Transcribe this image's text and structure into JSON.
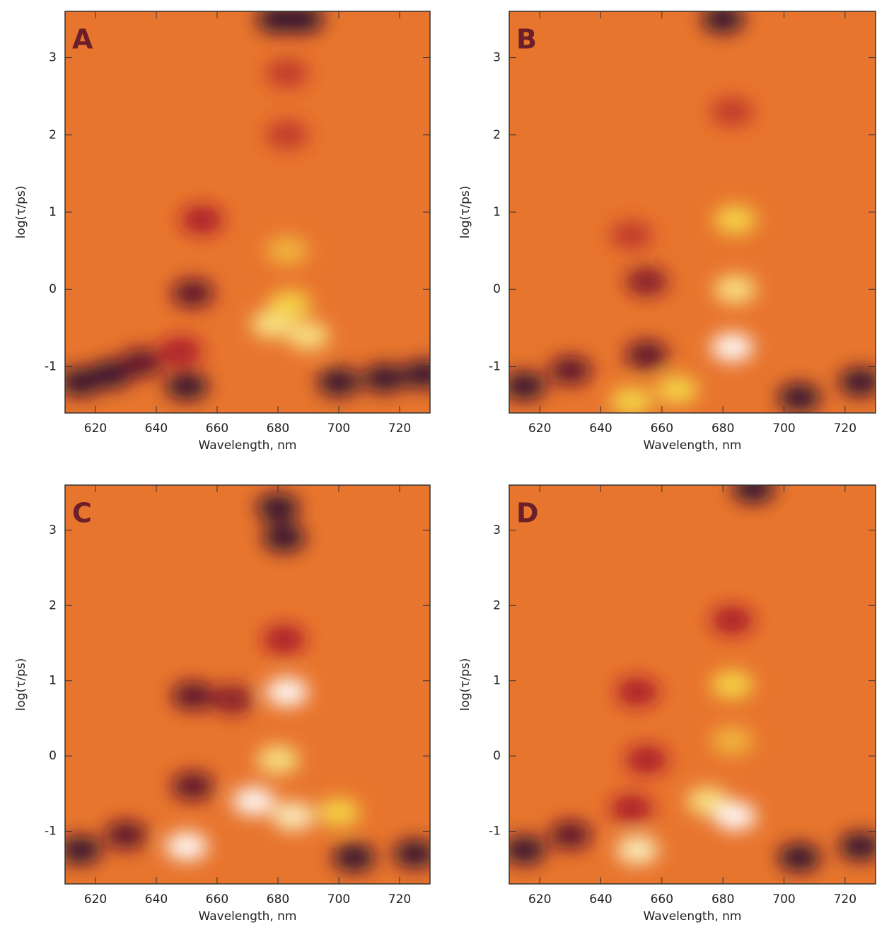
{
  "chart_data": [
    {
      "type": "heatmap",
      "panel": "A",
      "xlabel": "Wavelength, nm",
      "ylabel": "log(τ/ps)",
      "xlim": [
        610,
        730
      ],
      "ylim": [
        -1.6,
        3.6
      ],
      "xticks": [
        620,
        640,
        660,
        680,
        700,
        720
      ],
      "yticks": [
        -1,
        0,
        1,
        2,
        3
      ],
      "zlim": [
        -0.0006,
        0.0006
      ],
      "colors": [
        "#2a0a2e",
        "#a8182c",
        "#e8752e",
        "#f4d848",
        "#ffffff"
      ],
      "x": [
        615,
        625,
        635,
        648,
        700,
        715,
        728,
        680,
        688,
        683,
        683,
        655,
        652,
        678,
        690,
        683,
        684,
        650
      ],
      "y": [
        -1.2,
        -1.1,
        -0.95,
        -0.8,
        -1.2,
        -1.15,
        -1.1,
        3.5,
        3.5,
        2.8,
        2.0,
        0.9,
        -0.05,
        -0.45,
        -0.6,
        0.5,
        -0.2,
        -1.25
      ],
      "values": [
        -0.0006,
        -0.0006,
        -0.0005,
        -0.0003,
        -0.0006,
        -0.0006,
        -0.0006,
        -0.0006,
        -0.0006,
        -0.0002,
        -0.0002,
        -0.0003,
        -0.0005,
        0.0004,
        0.0004,
        0.0002,
        0.0003,
        -0.0006
      ]
    },
    {
      "type": "heatmap",
      "panel": "B",
      "xlabel": "Wavelength, nm",
      "ylabel": "log(τ/ps)",
      "xlim": [
        610,
        730
      ],
      "ylim": [
        -1.6,
        3.6
      ],
      "xticks": [
        620,
        640,
        660,
        680,
        700,
        720
      ],
      "yticks": [
        -1,
        0,
        1,
        2,
        3
      ],
      "zlim": [
        -0.0006,
        0.0006
      ],
      "colors": [
        "#2a0a2e",
        "#a8182c",
        "#e8752e",
        "#f4d848",
        "#ffffff"
      ],
      "x": [
        680,
        683,
        684,
        684,
        683,
        665,
        650,
        615,
        630,
        655,
        655,
        650,
        705,
        725
      ],
      "y": [
        3.5,
        2.3,
        0.9,
        0.0,
        -0.75,
        -1.3,
        -1.45,
        -1.25,
        -1.05,
        -0.85,
        0.1,
        0.7,
        -1.4,
        -1.2
      ],
      "values": [
        -0.0006,
        -0.0002,
        0.0003,
        0.0004,
        0.0006,
        0.0003,
        0.0003,
        -0.0006,
        -0.0005,
        -0.0005,
        -0.0004,
        -0.0002,
        -0.0006,
        -0.0006
      ]
    },
    {
      "type": "heatmap",
      "panel": "C",
      "xlabel": "Wavelength, nm",
      "ylabel": "log(τ/ps)",
      "xlim": [
        610,
        730
      ],
      "ylim": [
        -1.7,
        3.6
      ],
      "xticks": [
        620,
        640,
        660,
        680,
        700,
        720
      ],
      "yticks": [
        -1,
        0,
        1,
        2,
        3
      ],
      "zlim": [
        -0.0006,
        0.0006
      ],
      "colors": [
        "#2a0a2e",
        "#a8182c",
        "#e8752e",
        "#f4d848",
        "#ffffff"
      ],
      "x": [
        680,
        682,
        682,
        652,
        665,
        652,
        683,
        680,
        672,
        685,
        700,
        650,
        615,
        630,
        705,
        725
      ],
      "y": [
        3.3,
        2.9,
        1.55,
        0.8,
        0.75,
        -0.4,
        0.85,
        -0.05,
        -0.6,
        -0.8,
        -0.75,
        -1.2,
        -1.25,
        -1.05,
        -1.35,
        -1.3
      ],
      "values": [
        -0.0006,
        -0.0006,
        -0.0003,
        -0.0005,
        -0.0004,
        -0.0005,
        0.0006,
        0.0004,
        0.0006,
        0.0005,
        0.0003,
        0.0006,
        -0.0006,
        -0.0005,
        -0.0006,
        -0.0006
      ]
    },
    {
      "type": "heatmap",
      "panel": "D",
      "xlabel": "Wavelength, nm",
      "ylabel": "log(τ/ps)",
      "xlim": [
        610,
        730
      ],
      "ylim": [
        -1.7,
        3.6
      ],
      "xticks": [
        620,
        640,
        660,
        680,
        700,
        720
      ],
      "yticks": [
        -1,
        0,
        1,
        2,
        3
      ],
      "zlim": [
        -0.0006,
        0.0006
      ],
      "colors": [
        "#2a0a2e",
        "#a8182c",
        "#e8752e",
        "#f4d848",
        "#ffffff"
      ],
      "x": [
        690,
        683,
        652,
        655,
        650,
        683,
        683,
        675,
        684,
        652,
        615,
        630,
        705,
        725
      ],
      "y": [
        3.55,
        1.8,
        0.85,
        -0.05,
        -0.7,
        0.95,
        0.2,
        -0.6,
        -0.8,
        -1.25,
        -1.25,
        -1.05,
        -1.35,
        -1.2
      ],
      "values": [
        -0.0006,
        -0.0003,
        -0.0003,
        -0.0003,
        -0.0003,
        0.0003,
        0.0002,
        0.0004,
        0.0006,
        0.0005,
        -0.0006,
        -0.0005,
        -0.0006,
        -0.0006
      ]
    }
  ]
}
